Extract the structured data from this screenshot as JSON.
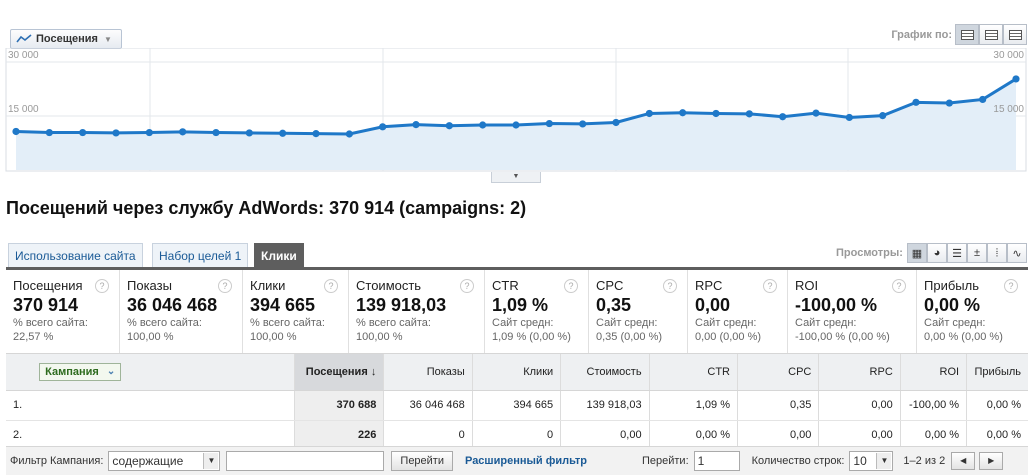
{
  "header": {
    "metric_label": "Посещения",
    "chart_by_label": "График по:"
  },
  "chart_data": {
    "type": "area",
    "y_ticks": [
      "30 000",
      "15 000"
    ],
    "ylim": [
      0,
      30000
    ],
    "grid": true,
    "series": [
      {
        "values": [
          10700,
          10400,
          10400,
          10300,
          10400,
          10600,
          10400,
          10300,
          10200,
          10100,
          10000,
          12000,
          12600,
          12300,
          12500,
          12500,
          12900,
          12800,
          13200,
          15700,
          15900,
          15700,
          15600,
          14800,
          15800,
          14600,
          15100,
          18800,
          18600,
          19600,
          25300
        ]
      }
    ],
    "color": "#1f78c8",
    "fill": "#e3eef8"
  },
  "title": "Посещений через службу AdWords: 370 914 (campaigns: 2)",
  "tabs": [
    "Использование сайта",
    "Набор целей 1",
    "Клики"
  ],
  "views_label": "Просмотры:",
  "metrics": [
    {
      "label": "Посещения",
      "value": "370 914",
      "sub1": "% всего сайта:",
      "sub2": "22,57 %"
    },
    {
      "label": "Показы",
      "value": "36 046 468",
      "sub1": "% всего сайта:",
      "sub2": "100,00 %"
    },
    {
      "label": "Клики",
      "value": "394 665",
      "sub1": "% всего сайта:",
      "sub2": "100,00 %"
    },
    {
      "label": "Стоимость",
      "value": "139 918,03",
      "sub1": "% всего сайта:",
      "sub2": "100,00 %"
    },
    {
      "label": "CTR",
      "value": "1,09 %",
      "sub1": "Сайт средн:",
      "sub2": "1,09 % (0,00 %)"
    },
    {
      "label": "CPC",
      "value": "0,35",
      "sub1": "Сайт средн:",
      "sub2": "0,35 (0,00 %)"
    },
    {
      "label": "RPC",
      "value": "0,00",
      "sub1": "Сайт средн:",
      "sub2": "0,00 (0,00 %)"
    },
    {
      "label": "ROI",
      "value": "-100,00 %",
      "sub1": "Сайт средн:",
      "sub2": "-100,00 % (0,00 %)"
    },
    {
      "label": "Прибыль",
      "value": "0,00 %",
      "sub1": "Сайт средн:",
      "sub2": "0,00 % (0,00 %)"
    }
  ],
  "table": {
    "dimension_label": "Кампания",
    "columns": [
      "Посещения",
      "Показы",
      "Клики",
      "Стоимость",
      "CTR",
      "CPC",
      "RPC",
      "ROI",
      "Прибыль"
    ],
    "rows": [
      {
        "index": "1.",
        "values": [
          "370 688",
          "36 046 468",
          "394 665",
          "139 918,03",
          "1,09 %",
          "0,35",
          "0,00",
          "-100,00 %",
          "0,00 %"
        ]
      },
      {
        "index": "2.",
        "values": [
          "226",
          "0",
          "0",
          "0,00",
          "0,00 %",
          "0,00",
          "0,00",
          "0,00 %",
          "0,00 %"
        ]
      }
    ]
  },
  "footer": {
    "filter_label": "Фильтр Кампания:",
    "filter_option": "содержащие",
    "go_button": "Перейти",
    "advanced_filter": "Расширенный фильтр",
    "goto_label": "Перейти:",
    "goto_value": "1",
    "rows_label": "Количество строк:",
    "rows_value": "10",
    "range": "1–2 из 2"
  }
}
